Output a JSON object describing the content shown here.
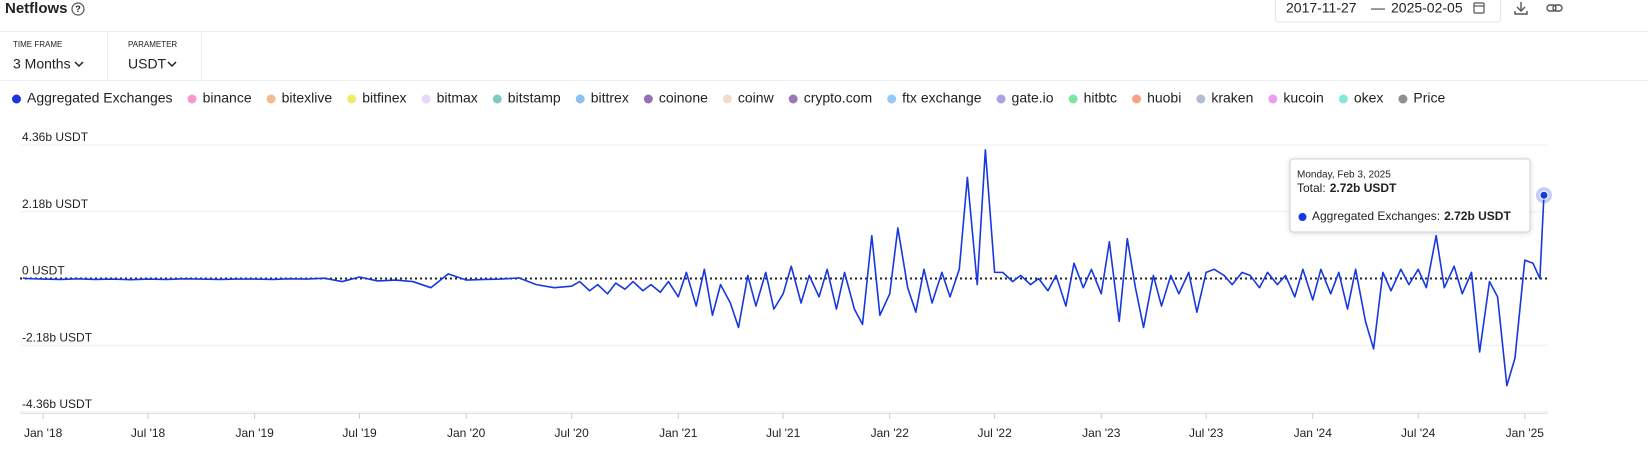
{
  "header": {
    "title": "Netflows",
    "date_from": "2017-11-27",
    "date_separator": "—",
    "date_to": "2025-02-05"
  },
  "controls": [
    {
      "label": "TIME FRAME",
      "value": "3 Months"
    },
    {
      "label": "PARAMETER",
      "value": "USDT"
    }
  ],
  "chart_data": {
    "type": "line",
    "x": [
      "2017-11-27",
      "2017-12-01",
      "2018-01-01",
      "2018-02-01",
      "2018-03-01",
      "2018-04-01",
      "2018-05-01",
      "2018-06-01",
      "2018-07-01",
      "2018-08-01",
      "2018-09-01",
      "2018-10-01",
      "2018-11-01",
      "2018-12-01",
      "2019-01-01",
      "2019-02-01",
      "2019-03-01",
      "2019-04-01",
      "2019-05-01",
      "2019-06-01",
      "2019-07-01",
      "2019-08-01",
      "2019-09-01",
      "2019-10-01",
      "2019-11-01",
      "2019-12-01",
      "2020-01-01",
      "2020-02-01",
      "2020-03-01",
      "2020-04-01",
      "2020-05-01",
      "2020-06-01",
      "2020-07-01",
      "2020-07-15",
      "2020-08-01",
      "2020-08-15",
      "2020-09-01",
      "2020-09-15",
      "2020-10-01",
      "2020-10-15",
      "2020-11-01",
      "2020-11-15",
      "2020-12-01",
      "2020-12-15",
      "2021-01-01",
      "2021-01-15",
      "2021-02-01",
      "2021-02-15",
      "2021-03-01",
      "2021-03-15",
      "2021-04-01",
      "2021-04-15",
      "2021-05-01",
      "2021-05-15",
      "2021-06-01",
      "2021-06-15",
      "2021-07-01",
      "2021-07-15",
      "2021-08-01",
      "2021-08-15",
      "2021-09-01",
      "2021-09-15",
      "2021-10-01",
      "2021-10-15",
      "2021-11-01",
      "2021-11-15",
      "2021-12-01",
      "2021-12-15",
      "2022-01-01",
      "2022-01-15",
      "2022-02-01",
      "2022-02-15",
      "2022-03-01",
      "2022-03-15",
      "2022-04-01",
      "2022-04-15",
      "2022-05-01",
      "2022-05-15",
      "2022-06-01",
      "2022-06-15",
      "2022-07-01",
      "2022-07-15",
      "2022-08-01",
      "2022-08-15",
      "2022-09-01",
      "2022-09-15",
      "2022-10-01",
      "2022-10-15",
      "2022-11-01",
      "2022-11-15",
      "2022-12-01",
      "2022-12-15",
      "2023-01-01",
      "2023-01-15",
      "2023-02-01",
      "2023-02-15",
      "2023-03-01",
      "2023-03-15",
      "2023-04-01",
      "2023-04-15",
      "2023-05-01",
      "2023-05-15",
      "2023-06-01",
      "2023-06-15",
      "2023-07-01",
      "2023-07-15",
      "2023-08-01",
      "2023-08-15",
      "2023-09-01",
      "2023-09-15",
      "2023-10-01",
      "2023-10-15",
      "2023-11-01",
      "2023-11-15",
      "2023-12-01",
      "2023-12-15",
      "2024-01-01",
      "2024-01-15",
      "2024-02-01",
      "2024-02-15",
      "2024-03-01",
      "2024-03-15",
      "2024-04-01",
      "2024-04-15",
      "2024-05-01",
      "2024-05-15",
      "2024-06-01",
      "2024-06-15",
      "2024-07-01",
      "2024-07-15",
      "2024-08-01",
      "2024-08-15",
      "2024-09-01",
      "2024-09-15",
      "2024-10-01",
      "2024-10-15",
      "2024-11-01",
      "2024-11-15",
      "2024-12-01",
      "2024-12-15",
      "2025-01-01",
      "2025-01-15",
      "2025-01-27",
      "2025-02-03"
    ],
    "series": [
      {
        "name": "Aggregated Exchanges",
        "color": "#1738e0",
        "values": [
          20000000.0,
          0,
          -20000000.0,
          -30000000.0,
          -10000000.0,
          -30000000.0,
          -20000000.0,
          -40000000.0,
          -20000000.0,
          -30000000.0,
          -10000000.0,
          -20000000.0,
          -30000000.0,
          -20000000.0,
          -20000000.0,
          -30000000.0,
          -10000000.0,
          -20000000.0,
          10000000.0,
          -100000000.0,
          50000000.0,
          -80000000.0,
          -50000000.0,
          -100000000.0,
          -300000000.0,
          150000000.0,
          -50000000.0,
          -30000000.0,
          -20000000.0,
          20000000.0,
          -200000000.0,
          -300000000.0,
          -250000000.0,
          -100000000.0,
          -400000000.0,
          -200000000.0,
          -500000000.0,
          -150000000.0,
          -350000000.0,
          -100000000.0,
          -400000000.0,
          -200000000.0,
          -450000000.0,
          -100000000.0,
          -600000000.0,
          200000000.0,
          -900000000.0,
          300000000.0,
          -1200000000.0,
          -200000000.0,
          -800000000.0,
          -1600000000.0,
          100000000.0,
          -900000000.0,
          200000000.0,
          -1000000000.0,
          -500000000.0,
          400000000.0,
          -800000000.0,
          100000000.0,
          -600000000.0,
          300000000.0,
          -1000000000.0,
          200000000.0,
          -1000000000.0,
          -1500000000.0,
          1400000000.0,
          -1200000000.0,
          -500000000.0,
          1650000000.0,
          -300000000.0,
          -1100000000.0,
          300000000.0,
          -800000000.0,
          200000000.0,
          -600000000.0,
          300000000.0,
          3300000000.0,
          -200000000.0,
          4200000000.0,
          200000000.0,
          200000000.0,
          -100000000.0,
          100000000.0,
          -200000000.0,
          0,
          -400000000.0,
          100000000.0,
          -900000000.0,
          500000000.0,
          -300000000.0,
          300000000.0,
          -500000000.0,
          1200000000.0,
          -1400000000.0,
          1300000000.0,
          -300000000.0,
          -1600000000.0,
          100000000.0,
          -900000000.0,
          100000000.0,
          -500000000.0,
          200000000.0,
          -1100000000.0,
          200000000.0,
          300000000.0,
          100000000.0,
          -200000000.0,
          200000000.0,
          100000000.0,
          -300000000.0,
          200000000.0,
          -200000000.0,
          100000000.0,
          -600000000.0,
          300000000.0,
          -700000000.0,
          300000000.0,
          -500000000.0,
          200000000.0,
          -1000000000.0,
          300000000.0,
          -1400000000.0,
          -2300000000.0,
          200000000.0,
          -400000000.0,
          300000000.0,
          -200000000.0,
          300000000.0,
          -300000000.0,
          1400000000.0,
          -300000000.0,
          400000000.0,
          -500000000.0,
          200000000.0,
          -2400000000.0,
          -100000000.0,
          -600000000.0,
          -3500000000.0,
          -2600000000.0,
          600000000.0,
          500000000.0,
          0,
          2720000000.0
        ]
      }
    ],
    "legend": [
      {
        "name": "binance",
        "color": "#f59ac9"
      },
      {
        "name": "bitexlive",
        "color": "#f7b98b"
      },
      {
        "name": "bitfinex",
        "color": "#eded6a"
      },
      {
        "name": "bitmax",
        "color": "#e9d5f7"
      },
      {
        "name": "bitstamp",
        "color": "#7ecbc4"
      },
      {
        "name": "bittrex",
        "color": "#8dc1f2"
      },
      {
        "name": "coinone",
        "color": "#9272b4"
      },
      {
        "name": "coinw",
        "color": "#f7dcc4"
      },
      {
        "name": "crypto.com",
        "color": "#9b77b5"
      },
      {
        "name": "ftx exchange",
        "color": "#94c9f8"
      },
      {
        "name": "gate.io",
        "color": "#a8a4e6"
      },
      {
        "name": "hitbtc",
        "color": "#7ee4a4"
      },
      {
        "name": "huobi",
        "color": "#f4a57f"
      },
      {
        "name": "kraken",
        "color": "#b5bdd2"
      },
      {
        "name": "kucoin",
        "color": "#ed9df1"
      },
      {
        "name": "okex",
        "color": "#86e8d6"
      },
      {
        "name": "Price",
        "color": "#8f8f8f"
      }
    ],
    "xlim": [
      "2017-11-22",
      "2025-02-10"
    ],
    "xticks": [
      {
        "value": "2018-01-01",
        "label": "Jan '18"
      },
      {
        "value": "2018-07-01",
        "label": "Jul '18"
      },
      {
        "value": "2019-01-01",
        "label": "Jan '19"
      },
      {
        "value": "2019-07-01",
        "label": "Jul '19"
      },
      {
        "value": "2020-01-01",
        "label": "Jan '20"
      },
      {
        "value": "2020-07-01",
        "label": "Jul '20"
      },
      {
        "value": "2021-01-01",
        "label": "Jan '21"
      },
      {
        "value": "2021-07-01",
        "label": "Jul '21"
      },
      {
        "value": "2022-01-01",
        "label": "Jan '22"
      },
      {
        "value": "2022-07-01",
        "label": "Jul '22"
      },
      {
        "value": "2023-01-01",
        "label": "Jan '23"
      },
      {
        "value": "2023-07-01",
        "label": "Jul '23"
      },
      {
        "value": "2024-01-01",
        "label": "Jan '24"
      },
      {
        "value": "2024-07-01",
        "label": "Jul '24"
      },
      {
        "value": "2025-01-01",
        "label": "Jan '25"
      }
    ],
    "ylim": [
      -4360000000.0,
      4360000000.0
    ],
    "yticks": [
      {
        "value": 4360000000.0,
        "label": "4.36b USDT"
      },
      {
        "value": 2180000000.0,
        "label": "2.18b USDT"
      },
      {
        "value": 0,
        "label": "0 USDT"
      },
      {
        "value": -2180000000.0,
        "label": "-2.18b USDT"
      },
      {
        "value": -4360000000.0,
        "label": "-4.36b USDT"
      }
    ],
    "grid": true,
    "tooltip": {
      "date": "Monday, Feb 3, 2025",
      "total_label": "Total:",
      "total": "2.72b USDT",
      "separator": ":",
      "value": "2.72b USDT"
    }
  }
}
